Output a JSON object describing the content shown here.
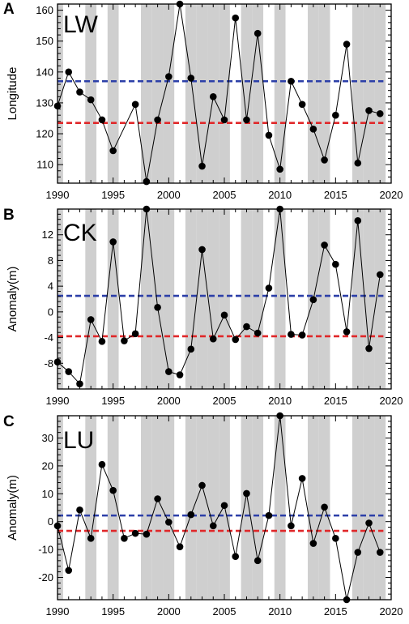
{
  "colors": {
    "shade": "#cfcfcf",
    "mean_upper_line": "#2c3fa8",
    "mean_lower_line": "#e0282a",
    "series": "#000000"
  },
  "shaded_years": [
    1990,
    1993,
    1995,
    1998,
    1999,
    2000,
    2002,
    2003,
    2004,
    2005,
    2007,
    2008,
    2010,
    2013,
    2014,
    2017,
    2018,
    2019
  ],
  "chart_data": [
    {
      "type": "line",
      "panel": "A",
      "name_label": "LW",
      "ylabel": "Longitude",
      "xlim": [
        1990,
        2020
      ],
      "ylim": [
        104,
        162
      ],
      "xticks": [
        1990,
        1995,
        2000,
        2005,
        2010,
        2015,
        2020
      ],
      "yticks": [
        110,
        120,
        130,
        140,
        150,
        160
      ],
      "x": [
        1990,
        1991,
        1992,
        1993,
        1994,
        1995,
        1997,
        1998,
        1999,
        2000,
        2001,
        2002,
        2003,
        2004,
        2005,
        2006,
        2007,
        2008,
        2009,
        2010,
        2011,
        2012,
        2013,
        2014,
        2015,
        2016,
        2017,
        2018,
        2019
      ],
      "values": [
        129,
        140,
        133.5,
        131,
        124.5,
        114.5,
        129.5,
        104.5,
        124.5,
        138.5,
        162,
        138,
        109.5,
        132,
        124.5,
        157.5,
        124.5,
        152.5,
        119.5,
        108.5,
        137,
        129.5,
        121.5,
        111.5,
        126,
        149,
        110.5,
        127.5,
        126.5
      ],
      "ref_lines": [
        137,
        123.5
      ],
      "grid": false
    },
    {
      "type": "line",
      "panel": "B",
      "name_label": "CK",
      "ylabel": "Anomaly(m)",
      "xlim": [
        1990,
        2020
      ],
      "ylim": [
        -12,
        16
      ],
      "xticks": [
        1990,
        1995,
        2000,
        2005,
        2010,
        2015,
        2020
      ],
      "yticks": [
        -8,
        -4,
        0,
        4,
        8,
        12
      ],
      "x": [
        1990,
        1991,
        1992,
        1993,
        1994,
        1995,
        1996,
        1997,
        1998,
        1999,
        2000,
        2001,
        2002,
        2003,
        2004,
        2005,
        2006,
        2007,
        2008,
        2009,
        2010,
        2011,
        2012,
        2013,
        2014,
        2015,
        2016,
        2017,
        2018,
        2019
      ],
      "values": [
        -7.8,
        -9.3,
        -11.2,
        -1.2,
        -4.6,
        10.9,
        -4.5,
        -3.4,
        16,
        0.7,
        -9.3,
        -9.8,
        -5.8,
        9.7,
        -4.2,
        -0.5,
        -4.3,
        -2.3,
        -3.3,
        3.7,
        16,
        -3.5,
        -3.6,
        1.9,
        10.4,
        7.4,
        -3.1,
        14.2,
        -5.7,
        5.8
      ],
      "ref_lines": [
        2.5,
        -3.8
      ],
      "grid": false
    },
    {
      "type": "line",
      "panel": "C",
      "name_label": "LU",
      "ylabel": "Anomaly(m)",
      "xlim": [
        1990,
        2020
      ],
      "ylim": [
        -28,
        38
      ],
      "xticks": [
        1990,
        1995,
        2000,
        2005,
        2010,
        2015,
        2020
      ],
      "yticks": [
        -20,
        -10,
        0,
        10,
        20,
        30
      ],
      "x": [
        1990,
        1991,
        1992,
        1993,
        1994,
        1995,
        1996,
        1997,
        1998,
        1999,
        2000,
        2001,
        2002,
        2003,
        2004,
        2005,
        2006,
        2007,
        2008,
        2009,
        2010,
        2011,
        2012,
        2013,
        2014,
        2015,
        2016,
        2017,
        2018,
        2019
      ],
      "values": [
        -1.5,
        -17.5,
        4.2,
        -6,
        20.5,
        11.2,
        -6,
        -4.2,
        -4.5,
        8.2,
        -0.2,
        -9,
        2.5,
        13,
        -1.5,
        5.8,
        -12.5,
        10.1,
        -14,
        2.2,
        38,
        -1.5,
        15.5,
        -7.8,
        5.2,
        -6,
        -28,
        -11,
        -0.5,
        -11
      ],
      "ref_lines": [
        2.2,
        -3.3
      ],
      "grid": false
    }
  ]
}
